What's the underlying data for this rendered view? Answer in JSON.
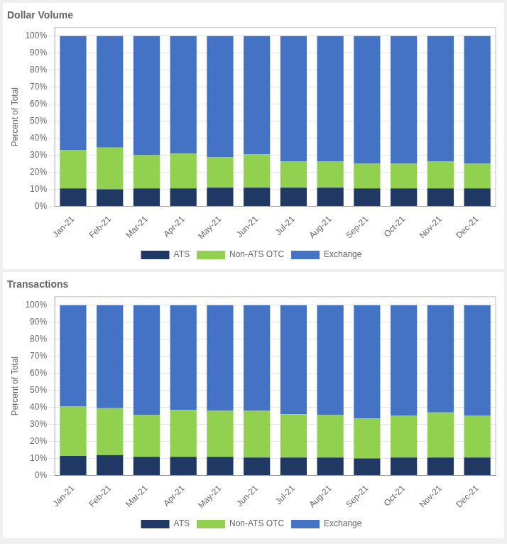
{
  "chart_data": [
    {
      "type": "bar",
      "title": "Dollar Volume",
      "ylabel": "Percent of Total",
      "categories": [
        "Jan-21",
        "Feb-21",
        "Mar-21",
        "Apr-21",
        "May-21",
        "Jun-21",
        "Jul-21",
        "Aug-21",
        "Sep-21",
        "Oct-21",
        "Nov-21",
        "Dec-21"
      ],
      "series": [
        {
          "name": "ATS",
          "color": "#1f3864",
          "values": [
            10.5,
            10.0,
            10.5,
            10.5,
            11.0,
            11.0,
            11.0,
            11.0,
            10.5,
            10.5,
            10.5,
            10.5
          ]
        },
        {
          "name": "Non-ATS OTC",
          "color": "#92d050",
          "values": [
            22.5,
            24.5,
            19.5,
            20.5,
            18.0,
            19.5,
            15.5,
            15.5,
            14.5,
            14.5,
            16.0,
            14.5
          ]
        },
        {
          "name": "Exchange",
          "color": "#4472c4",
          "values": [
            67.0,
            65.5,
            70.0,
            69.0,
            71.0,
            69.5,
            73.5,
            73.5,
            75.0,
            75.0,
            73.5,
            75.0
          ]
        }
      ],
      "stacked": true,
      "ylim": [
        0,
        105
      ],
      "yticks": [
        {
          "value": 0,
          "label": "0%"
        },
        {
          "value": 10,
          "label": "10%"
        },
        {
          "value": 20,
          "label": "20%"
        },
        {
          "value": 30,
          "label": "30%"
        },
        {
          "value": 40,
          "label": "40%"
        },
        {
          "value": 50,
          "label": "50%"
        },
        {
          "value": 60,
          "label": "60%"
        },
        {
          "value": 70,
          "label": "70%"
        },
        {
          "value": 80,
          "label": "80%"
        },
        {
          "value": 90,
          "label": "90%"
        },
        {
          "value": 100,
          "label": "100%"
        }
      ],
      "grid": true,
      "legend": "bottom"
    },
    {
      "type": "bar",
      "title": "Transactions",
      "ylabel": "Percent of Total",
      "categories": [
        "Jan-21",
        "Feb-21",
        "Mar-21",
        "Apr-21",
        "May-21",
        "Jun-21",
        "Jul-21",
        "Aug-21",
        "Sep-21",
        "Oct-21",
        "Nov-21",
        "Dec-21"
      ],
      "series": [
        {
          "name": "ATS",
          "color": "#1f3864",
          "values": [
            11.5,
            12.0,
            11.0,
            11.0,
            11.0,
            10.5,
            10.5,
            10.5,
            10.0,
            10.5,
            10.5,
            10.5
          ]
        },
        {
          "name": "Non-ATS OTC",
          "color": "#92d050",
          "values": [
            29.0,
            27.5,
            24.5,
            27.5,
            27.0,
            27.5,
            25.5,
            25.0,
            23.5,
            24.5,
            26.5,
            24.5
          ]
        },
        {
          "name": "Exchange",
          "color": "#4472c4",
          "values": [
            59.5,
            60.5,
            64.5,
            61.5,
            62.0,
            62.0,
            64.0,
            64.5,
            66.5,
            65.0,
            63.0,
            65.0
          ]
        }
      ],
      "stacked": true,
      "ylim": [
        0,
        105
      ],
      "yticks": [
        {
          "value": 0,
          "label": "0%"
        },
        {
          "value": 10,
          "label": "10%"
        },
        {
          "value": 20,
          "label": "20%"
        },
        {
          "value": 30,
          "label": "30%"
        },
        {
          "value": 40,
          "label": "40%"
        },
        {
          "value": 50,
          "label": "50%"
        },
        {
          "value": 60,
          "label": "60%"
        },
        {
          "value": 70,
          "label": "70%"
        },
        {
          "value": 80,
          "label": "80%"
        },
        {
          "value": 90,
          "label": "90%"
        },
        {
          "value": 100,
          "label": "100%"
        }
      ],
      "grid": true,
      "legend": "bottom"
    }
  ]
}
